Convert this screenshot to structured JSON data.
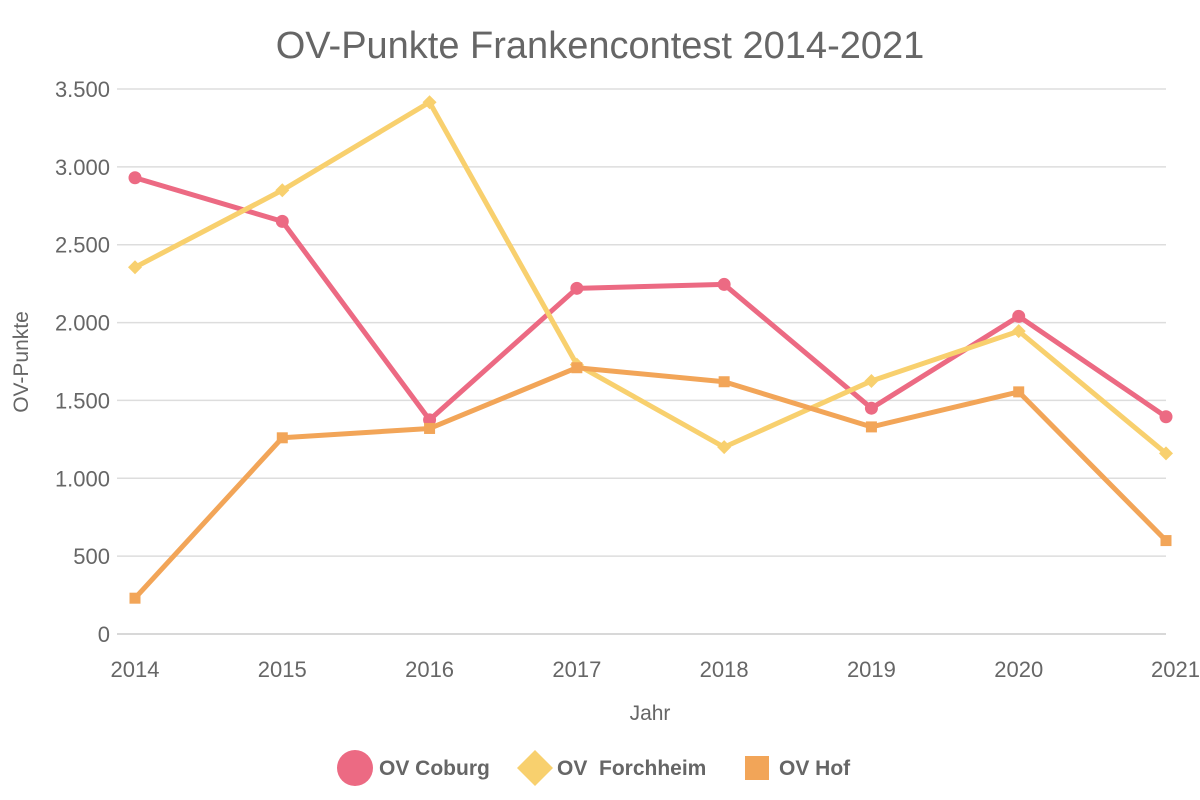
{
  "chart_data": {
    "type": "line",
    "title": "OV-Punkte Frankencontest 2014-2021",
    "xlabel": "Jahr",
    "ylabel": "OV-Punkte",
    "categories": [
      "2014",
      "2015",
      "2016",
      "2017",
      "2018",
      "2019",
      "2020",
      "2021"
    ],
    "ylim": [
      0,
      3500
    ],
    "yticks": [
      0,
      500,
      1000,
      1500,
      2000,
      2500,
      3000,
      3500
    ],
    "ytick_labels": [
      "0",
      "500",
      "1.000",
      "1.500",
      "2.000",
      "2.500",
      "3.000",
      "3.500"
    ],
    "grid": true,
    "legend_position": "bottom",
    "series": [
      {
        "name": "OV Coburg",
        "marker": "circle",
        "color": "#ec6a83",
        "values": [
          2930,
          2650,
          1375,
          2220,
          2245,
          1450,
          2040,
          1395
        ]
      },
      {
        "name": "OV  Forchheim",
        "marker": "diamond",
        "color": "#f8d06e",
        "values": [
          2355,
          2850,
          3415,
          1730,
          1200,
          1625,
          1945,
          1160
        ]
      },
      {
        "name": "OV Hof",
        "marker": "square",
        "color": "#f2a558",
        "values": [
          230,
          1260,
          1320,
          1710,
          1620,
          1330,
          1555,
          600
        ]
      }
    ]
  }
}
